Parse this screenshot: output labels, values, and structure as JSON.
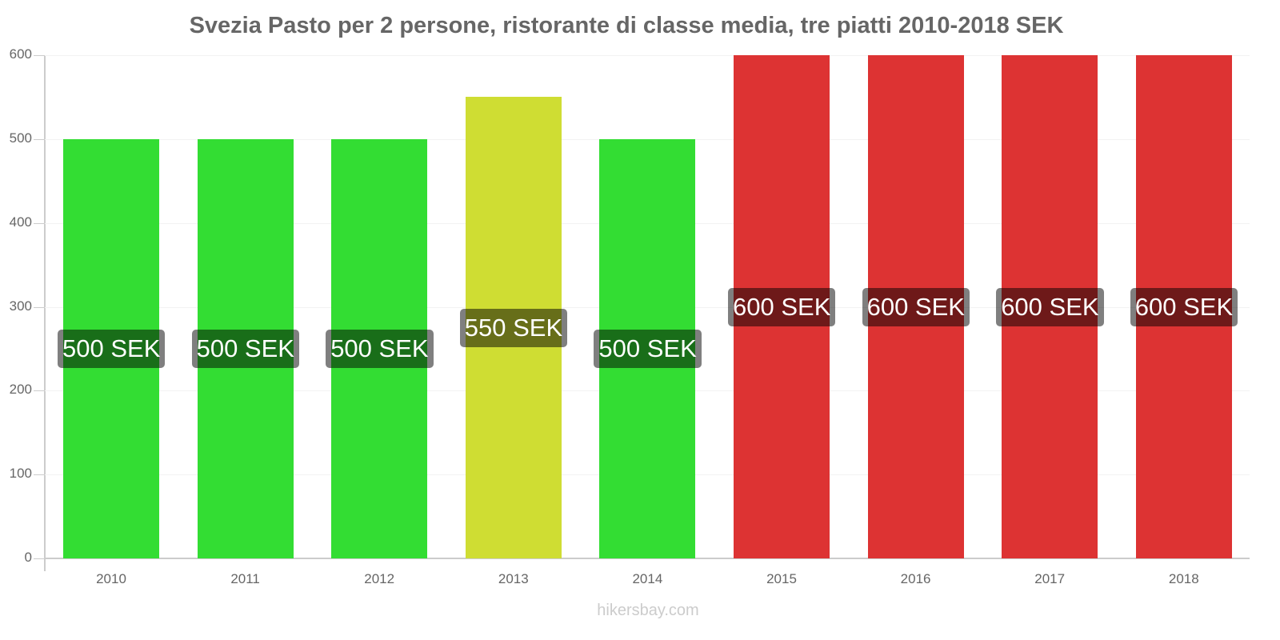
{
  "chart_data": {
    "type": "bar",
    "title": "Svezia Pasto per 2 persone, ristorante di classe media, tre piatti 2010-2018 SEK",
    "xlabel": "",
    "ylabel": "",
    "ylim": [
      0,
      600
    ],
    "yticks": [
      0,
      100,
      200,
      300,
      400,
      500,
      600
    ],
    "grid": true,
    "legend": null,
    "categories": [
      "2010",
      "2011",
      "2012",
      "2013",
      "2014",
      "2015",
      "2016",
      "2017",
      "2018"
    ],
    "values": [
      500,
      500,
      500,
      550,
      500,
      600,
      600,
      600,
      600
    ],
    "data_labels": [
      "500 SEK",
      "500 SEK",
      "500 SEK",
      "550 SEK",
      "500 SEK",
      "600 SEK",
      "600 SEK",
      "600 SEK",
      "600 SEK"
    ],
    "bar_colors": [
      "#33dd33",
      "#33dd33",
      "#33dd33",
      "#cfdd33",
      "#33dd33",
      "#dd3333",
      "#dd3333",
      "#dd3333",
      "#dd3333"
    ],
    "unit": "SEK"
  },
  "watermark": "hikersbay.com"
}
